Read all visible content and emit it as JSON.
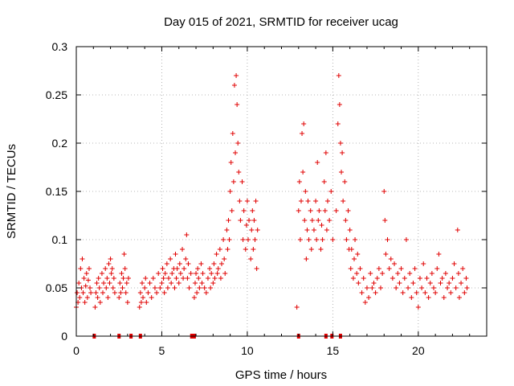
{
  "chart_data": {
    "type": "scatter",
    "title": "Day 015 of 2021, SRMTID for receiver ucag",
    "xlabel": "GPS time / hours",
    "ylabel": "SRMTID / TECUs",
    "xlim": [
      0,
      24
    ],
    "ylim": [
      0,
      0.3
    ],
    "xticks": [
      0,
      5,
      10,
      15,
      20
    ],
    "xtick_labels": [
      "0",
      "5",
      "10",
      "15",
      "20"
    ],
    "yticks": [
      0,
      0.05,
      0.1,
      0.15,
      0.2,
      0.25,
      0.3
    ],
    "ytick_labels": [
      "0",
      "0.05",
      "0.1",
      "0.15",
      "0.2",
      "0.25",
      "0.3"
    ],
    "grid": true,
    "marker": "+",
    "color": "#e00000",
    "series": [
      {
        "name": "SRMTID",
        "points": [
          [
            0.0,
            0.03
          ],
          [
            0.05,
            0.045
          ],
          [
            0.1,
            0.035
          ],
          [
            0.15,
            0.055
          ],
          [
            0.2,
            0.04
          ],
          [
            0.25,
            0.07
          ],
          [
            0.3,
            0.05
          ],
          [
            0.35,
            0.08
          ],
          [
            0.4,
            0.045
          ],
          [
            0.45,
            0.06
          ],
          [
            0.5,
            0.035
          ],
          [
            0.55,
            0.052
          ],
          [
            0.6,
            0.065
          ],
          [
            0.65,
            0.04
          ],
          [
            0.7,
            0.058
          ],
          [
            0.75,
            0.07
          ],
          [
            0.8,
            0.05
          ],
          [
            0.85,
            0.045
          ],
          [
            1.1,
            0.03
          ],
          [
            1.15,
            0.045
          ],
          [
            1.2,
            0.055
          ],
          [
            1.25,
            0.04
          ],
          [
            1.3,
            0.06
          ],
          [
            1.35,
            0.05
          ],
          [
            1.4,
            0.035
          ],
          [
            1.5,
            0.065
          ],
          [
            1.55,
            0.045
          ],
          [
            1.6,
            0.055
          ],
          [
            1.7,
            0.07
          ],
          [
            1.75,
            0.05
          ],
          [
            1.8,
            0.06
          ],
          [
            1.85,
            0.04
          ],
          [
            1.9,
            0.075
          ],
          [
            1.95,
            0.055
          ],
          [
            2.0,
            0.08
          ],
          [
            2.05,
            0.065
          ],
          [
            2.1,
            0.07
          ],
          [
            2.15,
            0.05
          ],
          [
            2.2,
            0.06
          ],
          [
            2.25,
            0.045
          ],
          [
            2.5,
            0.04
          ],
          [
            2.55,
            0.055
          ],
          [
            2.6,
            0.045
          ],
          [
            2.65,
            0.065
          ],
          [
            2.7,
            0.05
          ],
          [
            2.75,
            0.06
          ],
          [
            2.8,
            0.085
          ],
          [
            2.85,
            0.07
          ],
          [
            2.9,
            0.045
          ],
          [
            2.95,
            0.055
          ],
          [
            3.0,
            0.035
          ],
          [
            3.05,
            0.06
          ],
          [
            3.7,
            0.03
          ],
          [
            3.75,
            0.045
          ],
          [
            3.8,
            0.035
          ],
          [
            3.85,
            0.055
          ],
          [
            3.9,
            0.04
          ],
          [
            4.0,
            0.05
          ],
          [
            4.05,
            0.06
          ],
          [
            4.1,
            0.035
          ],
          [
            4.2,
            0.045
          ],
          [
            4.3,
            0.055
          ],
          [
            4.4,
            0.04
          ],
          [
            4.5,
            0.06
          ],
          [
            4.6,
            0.05
          ],
          [
            4.7,
            0.045
          ],
          [
            4.8,
            0.065
          ],
          [
            4.9,
            0.05
          ],
          [
            5.0,
            0.055
          ],
          [
            5.05,
            0.07
          ],
          [
            5.1,
            0.06
          ],
          [
            5.15,
            0.045
          ],
          [
            5.2,
            0.065
          ],
          [
            5.3,
            0.075
          ],
          [
            5.35,
            0.05
          ],
          [
            5.4,
            0.06
          ],
          [
            5.5,
            0.08
          ],
          [
            5.55,
            0.055
          ],
          [
            5.6,
            0.065
          ],
          [
            5.7,
            0.07
          ],
          [
            5.75,
            0.05
          ],
          [
            5.8,
            0.085
          ],
          [
            5.85,
            0.06
          ],
          [
            5.9,
            0.07
          ],
          [
            6.0,
            0.055
          ],
          [
            6.05,
            0.075
          ],
          [
            6.1,
            0.065
          ],
          [
            6.2,
            0.09
          ],
          [
            6.25,
            0.06
          ],
          [
            6.3,
            0.07
          ],
          [
            6.4,
            0.08
          ],
          [
            6.45,
            0.105
          ],
          [
            6.5,
            0.06
          ],
          [
            6.55,
            0.075
          ],
          [
            6.6,
            0.05
          ],
          [
            6.7,
            0.065
          ],
          [
            6.9,
            0.04
          ],
          [
            6.95,
            0.055
          ],
          [
            7.0,
            0.065
          ],
          [
            7.05,
            0.045
          ],
          [
            7.1,
            0.07
          ],
          [
            7.15,
            0.06
          ],
          [
            7.2,
            0.05
          ],
          [
            7.3,
            0.075
          ],
          [
            7.35,
            0.055
          ],
          [
            7.4,
            0.065
          ],
          [
            7.5,
            0.05
          ],
          [
            7.6,
            0.045
          ],
          [
            7.7,
            0.06
          ],
          [
            7.8,
            0.07
          ],
          [
            7.85,
            0.05
          ],
          [
            7.9,
            0.065
          ],
          [
            8.0,
            0.055
          ],
          [
            8.05,
            0.075
          ],
          [
            8.1,
            0.06
          ],
          [
            8.2,
            0.085
          ],
          [
            8.25,
            0.065
          ],
          [
            8.3,
            0.07
          ],
          [
            8.4,
            0.09
          ],
          [
            8.45,
            0.06
          ],
          [
            8.5,
            0.075
          ],
          [
            8.6,
            0.1
          ],
          [
            8.65,
            0.08
          ],
          [
            8.7,
            0.065
          ],
          [
            8.8,
            0.11
          ],
          [
            8.85,
            0.09
          ],
          [
            8.9,
            0.12
          ],
          [
            8.95,
            0.1
          ],
          [
            9.0,
            0.15
          ],
          [
            9.05,
            0.18
          ],
          [
            9.1,
            0.13
          ],
          [
            9.15,
            0.21
          ],
          [
            9.2,
            0.16
          ],
          [
            9.25,
            0.26
          ],
          [
            9.3,
            0.19
          ],
          [
            9.35,
            0.27
          ],
          [
            9.4,
            0.24
          ],
          [
            9.45,
            0.2
          ],
          [
            9.5,
            0.17
          ],
          [
            9.55,
            0.14
          ],
          [
            9.6,
            0.12
          ],
          [
            9.7,
            0.16
          ],
          [
            9.75,
            0.1
          ],
          [
            9.8,
            0.13
          ],
          [
            9.9,
            0.09
          ],
          [
            9.95,
            0.115
          ],
          [
            10.0,
            0.14
          ],
          [
            10.05,
            0.1
          ],
          [
            10.1,
            0.12
          ],
          [
            10.2,
            0.08
          ],
          [
            10.25,
            0.11
          ],
          [
            10.3,
            0.13
          ],
          [
            10.35,
            0.09
          ],
          [
            10.4,
            0.12
          ],
          [
            10.45,
            0.1
          ],
          [
            10.5,
            0.14
          ],
          [
            10.55,
            0.07
          ],
          [
            10.6,
            0.11
          ],
          [
            12.9,
            0.03
          ],
          [
            13.0,
            0.13
          ],
          [
            13.05,
            0.16
          ],
          [
            13.1,
            0.1
          ],
          [
            13.15,
            0.14
          ],
          [
            13.2,
            0.21
          ],
          [
            13.25,
            0.17
          ],
          [
            13.3,
            0.22
          ],
          [
            13.35,
            0.12
          ],
          [
            13.4,
            0.15
          ],
          [
            13.45,
            0.08
          ],
          [
            13.5,
            0.11
          ],
          [
            13.55,
            0.14
          ],
          [
            13.6,
            0.1
          ],
          [
            13.7,
            0.13
          ],
          [
            13.75,
            0.09
          ],
          [
            13.8,
            0.12
          ],
          [
            13.9,
            0.11
          ],
          [
            14.0,
            0.14
          ],
          [
            14.05,
            0.1
          ],
          [
            14.1,
            0.18
          ],
          [
            14.15,
            0.12
          ],
          [
            14.2,
            0.13
          ],
          [
            14.3,
            0.09
          ],
          [
            14.35,
            0.115
          ],
          [
            14.4,
            0.1
          ],
          [
            14.5,
            0.16
          ],
          [
            14.55,
            0.13
          ],
          [
            14.6,
            0.19
          ],
          [
            14.65,
            0.11
          ],
          [
            14.7,
            0.14
          ],
          [
            14.8,
            0.12
          ],
          [
            14.9,
            0.15
          ],
          [
            15.0,
            0.1
          ],
          [
            15.2,
            0.13
          ],
          [
            15.3,
            0.22
          ],
          [
            15.35,
            0.27
          ],
          [
            15.4,
            0.24
          ],
          [
            15.45,
            0.2
          ],
          [
            15.5,
            0.17
          ],
          [
            15.55,
            0.19
          ],
          [
            15.6,
            0.14
          ],
          [
            15.7,
            0.16
          ],
          [
            15.75,
            0.12
          ],
          [
            15.8,
            0.1
          ],
          [
            15.9,
            0.13
          ],
          [
            15.95,
            0.09
          ],
          [
            16.0,
            0.11
          ],
          [
            16.05,
            0.07
          ],
          [
            16.1,
            0.09
          ],
          [
            16.2,
            0.06
          ],
          [
            16.25,
            0.08
          ],
          [
            16.3,
            0.1
          ],
          [
            16.4,
            0.065
          ],
          [
            16.45,
            0.085
          ],
          [
            16.5,
            0.055
          ],
          [
            16.6,
            0.07
          ],
          [
            16.7,
            0.045
          ],
          [
            16.8,
            0.06
          ],
          [
            16.9,
            0.035
          ],
          [
            17.0,
            0.05
          ],
          [
            17.1,
            0.04
          ],
          [
            17.2,
            0.065
          ],
          [
            17.3,
            0.05
          ],
          [
            17.4,
            0.055
          ],
          [
            17.5,
            0.045
          ],
          [
            17.6,
            0.06
          ],
          [
            17.7,
            0.07
          ],
          [
            17.8,
            0.05
          ],
          [
            17.9,
            0.065
          ],
          [
            18.0,
            0.15
          ],
          [
            18.05,
            0.12
          ],
          [
            18.1,
            0.085
          ],
          [
            18.2,
            0.1
          ],
          [
            18.3,
            0.07
          ],
          [
            18.4,
            0.08
          ],
          [
            18.5,
            0.06
          ],
          [
            18.6,
            0.075
          ],
          [
            18.7,
            0.05
          ],
          [
            18.8,
            0.065
          ],
          [
            18.9,
            0.055
          ],
          [
            19.0,
            0.07
          ],
          [
            19.1,
            0.045
          ],
          [
            19.2,
            0.06
          ],
          [
            19.3,
            0.1
          ],
          [
            19.4,
            0.05
          ],
          [
            19.5,
            0.065
          ],
          [
            19.6,
            0.04
          ],
          [
            19.7,
            0.055
          ],
          [
            19.8,
            0.07
          ],
          [
            19.9,
            0.045
          ],
          [
            20.0,
            0.03
          ],
          [
            20.1,
            0.06
          ],
          [
            20.2,
            0.05
          ],
          [
            20.3,
            0.075
          ],
          [
            20.4,
            0.045
          ],
          [
            20.5,
            0.06
          ],
          [
            20.6,
            0.04
          ],
          [
            20.7,
            0.055
          ],
          [
            20.8,
            0.065
          ],
          [
            20.9,
            0.05
          ],
          [
            21.0,
            0.045
          ],
          [
            21.1,
            0.07
          ],
          [
            21.2,
            0.085
          ],
          [
            21.3,
            0.055
          ],
          [
            21.4,
            0.06
          ],
          [
            21.5,
            0.04
          ],
          [
            21.6,
            0.065
          ],
          [
            21.7,
            0.05
          ],
          [
            21.8,
            0.055
          ],
          [
            21.9,
            0.045
          ],
          [
            22.0,
            0.06
          ],
          [
            22.1,
            0.075
          ],
          [
            22.2,
            0.05
          ],
          [
            22.3,
            0.11
          ],
          [
            22.35,
            0.065
          ],
          [
            22.4,
            0.04
          ],
          [
            22.5,
            0.055
          ],
          [
            22.6,
            0.07
          ],
          [
            22.7,
            0.045
          ],
          [
            22.8,
            0.06
          ],
          [
            22.85,
            0.05
          ]
        ]
      }
    ],
    "baseline_markers_x": [
      1.05,
      2.5,
      3.2,
      3.75,
      6.75,
      6.9,
      13.0,
      14.6,
      14.95,
      15.45
    ]
  }
}
